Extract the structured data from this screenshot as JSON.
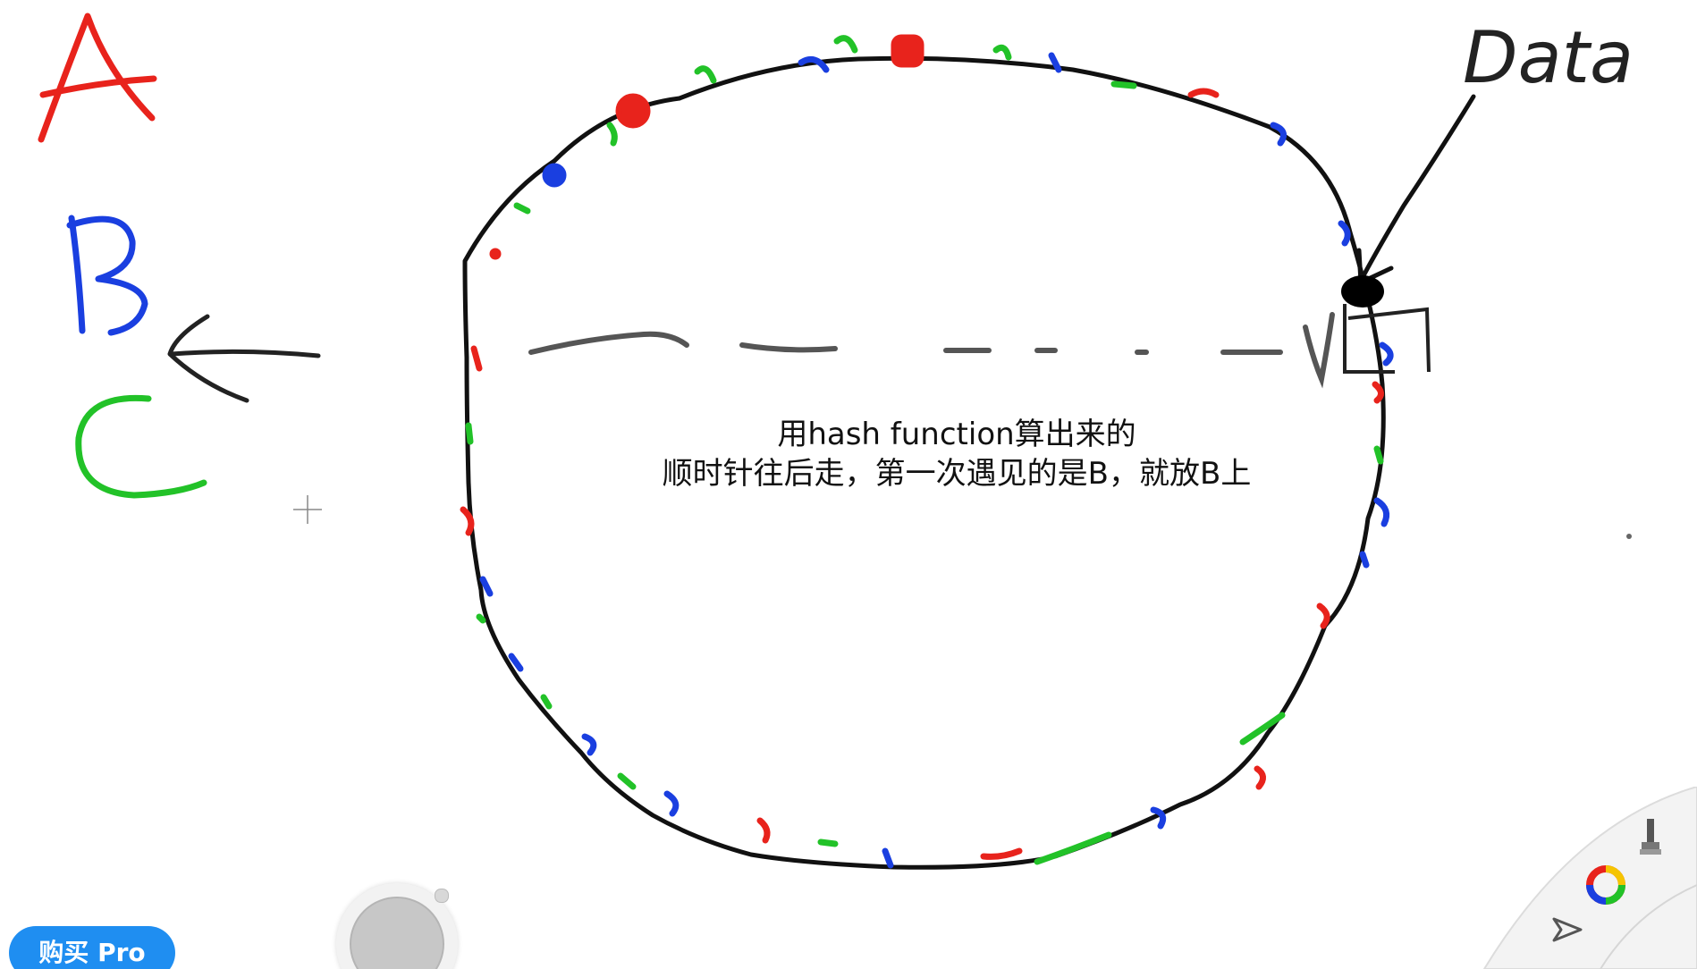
{
  "legend": {
    "a_label": "A",
    "b_label": "B",
    "c_label": "C",
    "colors": {
      "a": "#e8231c",
      "b": "#1a3fe0",
      "c": "#22c228"
    }
  },
  "data_label": "Data",
  "annotation": {
    "line1": "用hash function算出来的",
    "line2": "顺时针往后走，第一次遇见的是B，就放B上"
  },
  "toolbar": {
    "buy_pro_label": "购买 Pro",
    "brand_color": "#1f8ef1"
  },
  "icons": {
    "fab": "circle-brush-button",
    "wheel": [
      "brush-icon",
      "color-wheel-icon",
      "pointer-icon"
    ]
  }
}
